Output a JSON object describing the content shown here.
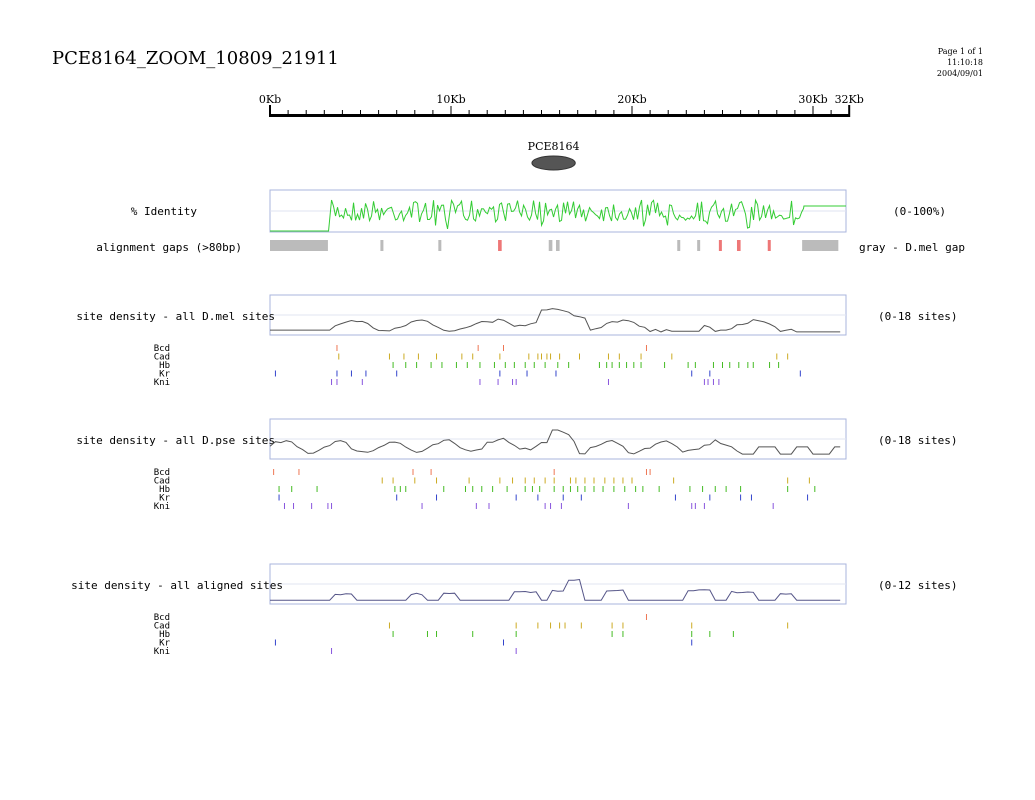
{
  "header": {
    "title": "PCE8164_ZOOM_10809_21911",
    "page": "Page 1 of 1",
    "time": "11:10:18",
    "date": "2004/09/01"
  },
  "ruler": {
    "total_kb": 32,
    "labels": [
      {
        "kb": 0,
        "text": "0Kb"
      },
      {
        "kb": 10,
        "text": "10Kb"
      },
      {
        "kb": 20,
        "text": "20Kb"
      },
      {
        "kb": 30,
        "text": "30Kb"
      },
      {
        "kb": 32,
        "text": "32Kb"
      }
    ]
  },
  "gene": {
    "name": "PCE8164",
    "center_kb": 16.0,
    "width_kb": 2.4
  },
  "identity": {
    "label": "% Identity",
    "range": "(0-100%)",
    "start_kb": 3.4,
    "end_kb": 29.5,
    "color": "#33cc33"
  },
  "gaps": {
    "label": "alignment gaps (>80bp)",
    "legend": "gray - D.mel gap",
    "gray_color": "#bbbbbb",
    "red_color": "#ee7777",
    "items": [
      {
        "start": 0.0,
        "end": 3.2,
        "type": "gray"
      },
      {
        "start": 6.1,
        "end": 6.2,
        "type": "gray"
      },
      {
        "start": 9.3,
        "end": 9.4,
        "type": "gray"
      },
      {
        "start": 12.6,
        "end": 12.8,
        "type": "red"
      },
      {
        "start": 15.4,
        "end": 15.6,
        "type": "gray"
      },
      {
        "start": 15.8,
        "end": 16.0,
        "type": "gray"
      },
      {
        "start": 22.5,
        "end": 22.6,
        "type": "gray"
      },
      {
        "start": 23.6,
        "end": 23.7,
        "type": "gray"
      },
      {
        "start": 24.8,
        "end": 24.9,
        "type": "red"
      },
      {
        "start": 25.8,
        "end": 26.0,
        "type": "red"
      },
      {
        "start": 27.5,
        "end": 27.6,
        "type": "red"
      },
      {
        "start": 29.4,
        "end": 31.4,
        "type": "gray"
      }
    ]
  },
  "tracks": [
    {
      "label": "site density - all D.mel sites",
      "range": "(0-18 sites)",
      "line_color": "#555555",
      "factors": [
        {
          "name": "Bcd",
          "color": "#ee7755",
          "positions": [
            3.7,
            11.5,
            12.9,
            20.8
          ]
        },
        {
          "name": "Cad",
          "color": "#ccaa22",
          "positions": [
            3.8,
            6.6,
            7.4,
            8.2,
            9.2,
            10.6,
            11.2,
            12.7,
            14.3,
            14.8,
            15.0,
            15.3,
            15.5,
            16.0,
            17.1,
            18.7,
            19.3,
            20.5,
            22.2,
            28.0,
            28.6
          ]
        },
        {
          "name": "Hb",
          "color": "#44bb22",
          "positions": [
            6.8,
            7.5,
            8.1,
            8.9,
            9.5,
            10.3,
            10.9,
            11.6,
            12.4,
            13.0,
            13.5,
            14.1,
            14.6,
            15.2,
            15.9,
            16.5,
            18.2,
            18.6,
            18.9,
            19.3,
            19.7,
            20.1,
            20.5,
            21.8,
            23.1,
            23.5,
            24.5,
            25.0,
            25.4,
            25.9,
            26.4,
            26.7,
            27.6,
            28.1
          ]
        },
        {
          "name": "Kr",
          "color": "#3344cc",
          "positions": [
            0.3,
            3.7,
            4.5,
            5.3,
            7.0,
            12.7,
            14.2,
            15.8,
            23.3,
            24.3,
            29.3
          ]
        },
        {
          "name": "Kni",
          "color": "#8855dd",
          "positions": [
            3.4,
            3.7,
            5.1,
            11.6,
            12.6,
            13.4,
            13.6,
            18.7,
            24.0,
            24.2,
            24.5,
            24.8
          ]
        }
      ]
    },
    {
      "label": "site density - all D.pse sites",
      "range": "(0-18 sites)",
      "line_color": "#555555",
      "factors": [
        {
          "name": "Bcd",
          "color": "#ee7755",
          "positions": [
            0.2,
            1.6,
            7.9,
            8.9,
            15.7,
            20.8,
            21.0
          ]
        },
        {
          "name": "Cad",
          "color": "#ccaa22",
          "positions": [
            6.2,
            6.8,
            8.0,
            9.2,
            11.0,
            12.7,
            13.4,
            14.1,
            14.6,
            15.2,
            15.7,
            16.6,
            16.9,
            17.4,
            17.9,
            18.5,
            19.0,
            19.5,
            20.0,
            22.3,
            28.6,
            29.8
          ]
        },
        {
          "name": "Hb",
          "color": "#44bb22",
          "positions": [
            0.5,
            1.2,
            2.6,
            6.9,
            7.2,
            7.5,
            9.6,
            10.8,
            11.2,
            11.7,
            12.3,
            13.1,
            14.1,
            14.5,
            14.9,
            15.7,
            16.2,
            16.6,
            17.0,
            17.4,
            17.9,
            18.4,
            19.0,
            19.6,
            20.2,
            20.6,
            21.5,
            23.2,
            23.9,
            24.6,
            25.2,
            26.0,
            28.6,
            30.1
          ]
        },
        {
          "name": "Kr",
          "color": "#3344cc",
          "positions": [
            0.5,
            7.0,
            9.2,
            13.6,
            14.8,
            16.2,
            17.2,
            22.4,
            24.3,
            26.0,
            26.6,
            29.7
          ]
        },
        {
          "name": "Kni",
          "color": "#8855dd",
          "positions": [
            0.8,
            1.3,
            2.3,
            3.2,
            3.4,
            8.4,
            11.4,
            12.1,
            15.2,
            15.5,
            16.1,
            19.8,
            23.3,
            23.5,
            24.0,
            27.8
          ]
        }
      ]
    },
    {
      "label": "site density - all aligned sites",
      "range": "(0-12 sites)",
      "line_color": "#555588",
      "factors": [
        {
          "name": "Bcd",
          "color": "#ee7755",
          "positions": [
            20.8
          ]
        },
        {
          "name": "Cad",
          "color": "#ccaa22",
          "positions": [
            6.6,
            13.6,
            14.8,
            15.5,
            16.0,
            16.3,
            17.2,
            18.9,
            19.5,
            23.3,
            28.6
          ]
        },
        {
          "name": "Hb",
          "color": "#44bb22",
          "positions": [
            6.8,
            8.7,
            9.2,
            11.2,
            13.6,
            18.9,
            19.5,
            23.3,
            24.3,
            25.6
          ]
        },
        {
          "name": "Kr",
          "color": "#3344cc",
          "positions": [
            0.3,
            12.9,
            23.3
          ]
        },
        {
          "name": "Kni",
          "color": "#8855dd",
          "positions": [
            3.4,
            13.6
          ]
        }
      ]
    }
  ]
}
